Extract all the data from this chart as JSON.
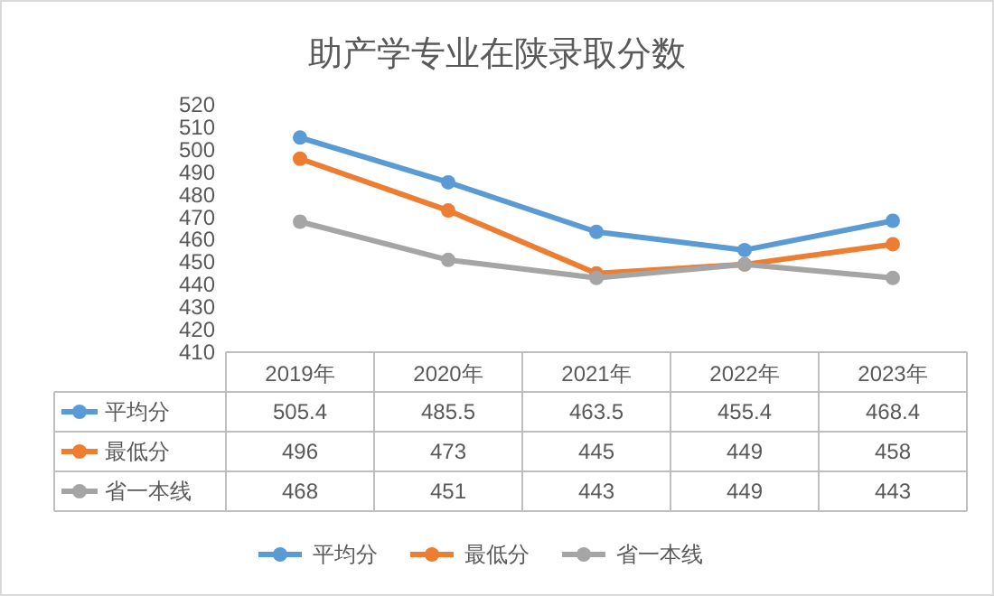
{
  "chart_data": {
    "type": "line",
    "title": "助产学专业在陕录取分数",
    "categories": [
      "2019年",
      "2020年",
      "2021年",
      "2022年",
      "2023年"
    ],
    "series": [
      {
        "name": "平均分",
        "color": "#5b9bd5",
        "values": [
          505.4,
          485.5,
          463.5,
          455.4,
          468.4
        ]
      },
      {
        "name": "最低分",
        "color": "#ed7d31",
        "values": [
          496,
          473,
          445,
          449,
          458
        ]
      },
      {
        "name": "省一本线",
        "color": "#a5a5a5",
        "values": [
          468,
          451,
          443,
          449,
          443
        ]
      }
    ],
    "ylim": [
      410,
      520
    ],
    "yticks": [
      410,
      420,
      430,
      440,
      450,
      460,
      470,
      480,
      490,
      500,
      510,
      520
    ],
    "data_labels": true,
    "legend": "bottom",
    "grid": false,
    "marker": "circle",
    "line_style": "solid"
  }
}
